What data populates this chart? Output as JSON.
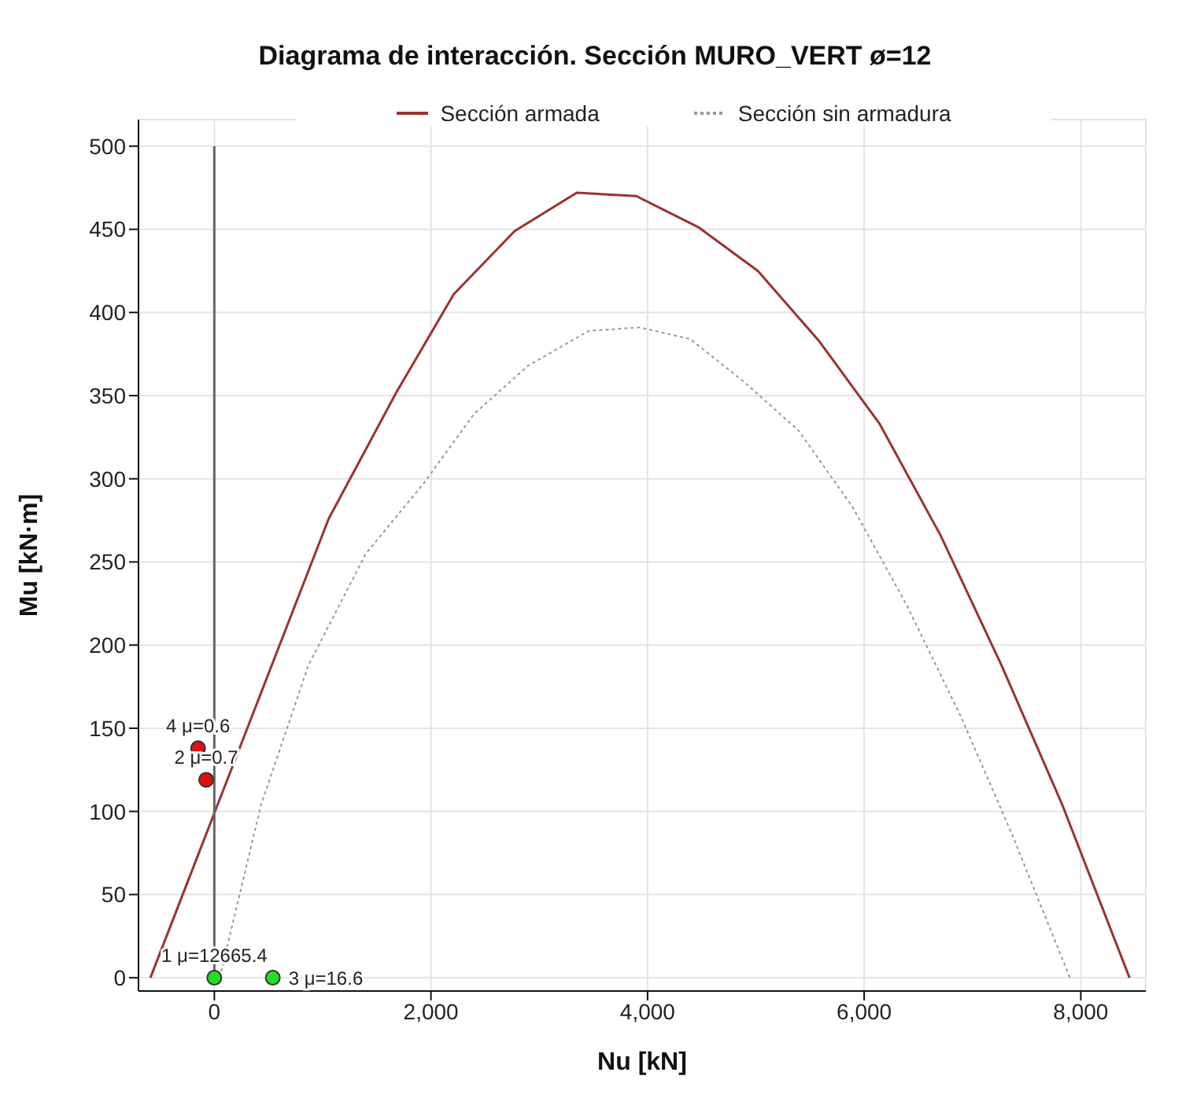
{
  "chart_data": {
    "type": "line",
    "title": "Diagrama de interacción. Sección MURO_VERT ø=12",
    "xlabel": "Nu [kN]",
    "ylabel": "Mu [kN·m]",
    "xlim": [
      -700,
      8600
    ],
    "ylim": [
      -8,
      516
    ],
    "xticks": [
      0,
      {
        "value": 2000,
        "label": "2,000"
      },
      {
        "value": 4000,
        "label": "4,000"
      },
      {
        "value": 6000,
        "label": "6,000"
      },
      {
        "value": 8000,
        "label": "8,000"
      }
    ],
    "yticks": [
      0,
      50,
      100,
      150,
      200,
      250,
      300,
      350,
      400,
      450,
      500
    ],
    "grid": true,
    "legend": "top",
    "series": [
      {
        "name": "Sección armada",
        "color": "#993333",
        "line_style": "solid",
        "x": [
          -590,
          1056,
          1681,
          2211,
          2773,
          3347,
          3896,
          4476,
          5019,
          5581,
          6143,
          6705,
          7267,
          7829,
          8450
        ],
        "values": [
          0,
          276,
          352,
          411,
          449,
          472,
          470,
          451,
          425,
          383,
          333,
          266,
          188,
          104,
          0
        ]
      },
      {
        "name": "Sección sin armadura",
        "color": "#999999",
        "line_style": "dotted",
        "x": [
          50,
          432,
          869,
          1399,
          1930,
          2398,
          2897,
          3459,
          3928,
          4395,
          4895,
          5394,
          5893,
          6393,
          6893,
          7360,
          7900
        ],
        "values": [
          0,
          104,
          188,
          255,
          297,
          339,
          368,
          389,
          391,
          384,
          358,
          329,
          283,
          224,
          157,
          87,
          0
        ]
      },
      {
        "color": "#666666",
        "line_style": "solid",
        "x": [
          0,
          0
        ],
        "values": [
          0,
          500
        ]
      },
      {
        "type": "scatter",
        "color": "#dd1111",
        "marker": "circle",
        "x": [
          -150,
          -75
        ],
        "values": [
          138,
          119
        ]
      },
      {
        "type": "scatter",
        "color": "#22dd22",
        "marker": "circle",
        "x": [
          0,
          540
        ],
        "values": [
          0,
          0
        ]
      }
    ],
    "annotations": [
      {
        "text": "4 μ=0.6",
        "x": -150,
        "y": 138
      },
      {
        "text": "2 μ=0.7",
        "x": -75,
        "y": 119
      },
      {
        "text": "1 μ=12665.4",
        "x": 0,
        "y": 0
      },
      {
        "text": "3 μ=16.6",
        "x": 540,
        "y": 0
      }
    ]
  }
}
